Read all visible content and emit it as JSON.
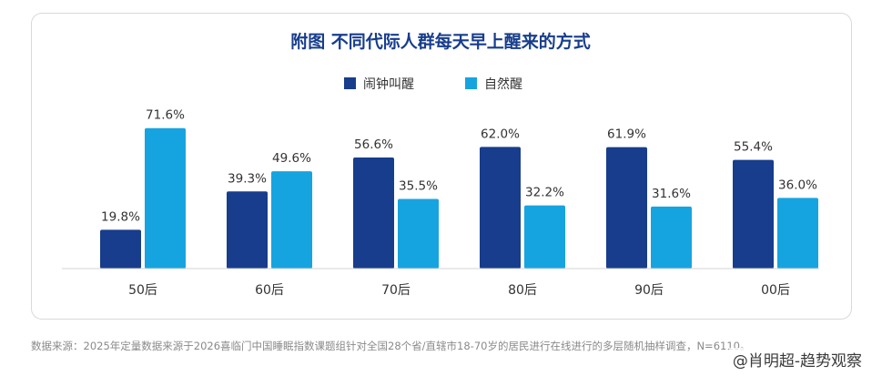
{
  "chart_data": {
    "type": "bar",
    "title": "附图  不同代际人群每天早上醒来的方式",
    "categories": [
      "50后",
      "60后",
      "70后",
      "80后",
      "90后",
      "00后"
    ],
    "series": [
      {
        "name": "闹钟叫醒",
        "values": [
          19.8,
          39.3,
          56.6,
          62.0,
          61.9,
          55.4
        ],
        "labels": [
          "19.8%",
          "39.3%",
          "56.6%",
          "62.0%",
          "61.9%",
          "55.4%"
        ]
      },
      {
        "name": "自然醒",
        "values": [
          71.6,
          49.6,
          35.5,
          32.2,
          31.6,
          36.0
        ],
        "labels": [
          "71.6%",
          "49.6%",
          "35.5%",
          "32.2%",
          "31.6%",
          "36.0%"
        ]
      }
    ],
    "ylim": [
      0,
      80
    ],
    "legend_position": "top-center",
    "grid": false
  },
  "colors": {
    "series": [
      "#173d8c",
      "#16a4e0"
    ],
    "title": "#173d8c",
    "text": "#333333"
  },
  "footer": {
    "source": "数据来源：2025年定量数据来源于2026喜临门中国睡眠指数课题组针对全国28个省/直辖市18-70岁的居民进行在线进行的多层随机抽样调查，N=6110。",
    "watermark": "@肖明超-趋势观察"
  }
}
